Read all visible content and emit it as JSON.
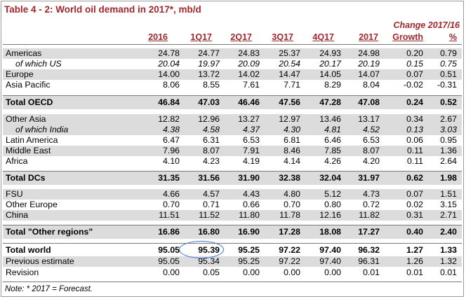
{
  "title": "Table 4 - 2: World oil demand in 2017*, mb/d",
  "change_header": "Change 2017/16",
  "columns": [
    "2016",
    "1Q17",
    "2Q17",
    "3Q17",
    "4Q17",
    "2017",
    "Growth",
    "%"
  ],
  "rows": [
    {
      "label": "Americas",
      "values": [
        "24.78",
        "24.77",
        "24.83",
        "25.37",
        "24.93",
        "24.98",
        "0.20",
        "0.79"
      ]
    },
    {
      "label": "of which US",
      "values": [
        "20.04",
        "19.97",
        "20.09",
        "20.54",
        "20.17",
        "20.19",
        "0.15",
        "0.75"
      ]
    },
    {
      "label": "Europe",
      "values": [
        "14.00",
        "13.72",
        "14.02",
        "14.47",
        "14.05",
        "14.07",
        "0.07",
        "0.51"
      ]
    },
    {
      "label": "Asia Pacific",
      "values": [
        "8.06",
        "8.55",
        "7.61",
        "7.71",
        "8.29",
        "8.04",
        "-0.02",
        "-0.31"
      ]
    },
    {
      "label": "Total OECD",
      "values": [
        "46.84",
        "47.03",
        "46.46",
        "47.56",
        "47.28",
        "47.08",
        "0.24",
        "0.52"
      ]
    },
    {
      "label": "Other Asia",
      "values": [
        "12.82",
        "12.96",
        "13.27",
        "12.97",
        "13.46",
        "13.17",
        "0.34",
        "2.67"
      ]
    },
    {
      "label": "of which India",
      "values": [
        "4.38",
        "4.58",
        "4.37",
        "4.30",
        "4.81",
        "4.52",
        "0.13",
        "3.03"
      ]
    },
    {
      "label": "Latin America",
      "values": [
        "6.47",
        "6.31",
        "6.53",
        "6.81",
        "6.46",
        "6.53",
        "0.06",
        "0.95"
      ]
    },
    {
      "label": "Middle East",
      "values": [
        "7.96",
        "8.07",
        "7.91",
        "8.46",
        "7.85",
        "8.07",
        "0.11",
        "1.36"
      ]
    },
    {
      "label": "Africa",
      "values": [
        "4.10",
        "4.23",
        "4.19",
        "4.14",
        "4.26",
        "4.20",
        "0.11",
        "2.64"
      ]
    },
    {
      "label": "Total DCs",
      "values": [
        "31.35",
        "31.56",
        "31.90",
        "32.38",
        "32.04",
        "31.97",
        "0.62",
        "1.98"
      ]
    },
    {
      "label": "FSU",
      "values": [
        "4.66",
        "4.57",
        "4.43",
        "4.80",
        "5.12",
        "4.73",
        "0.07",
        "1.51"
      ]
    },
    {
      "label": "Other Europe",
      "values": [
        "0.70",
        "0.71",
        "0.66",
        "0.70",
        "0.80",
        "0.72",
        "0.02",
        "3.15"
      ]
    },
    {
      "label": "China",
      "values": [
        "11.51",
        "11.52",
        "11.80",
        "11.78",
        "12.16",
        "11.82",
        "0.31",
        "2.71"
      ]
    },
    {
      "label": "Total \"Other regions\"",
      "values": [
        "16.86",
        "16.80",
        "16.90",
        "17.28",
        "18.08",
        "17.27",
        "0.40",
        "2.40"
      ]
    },
    {
      "label": "Total world",
      "values": [
        "95.05",
        "95.39",
        "95.25",
        "97.22",
        "97.40",
        "96.32",
        "1.27",
        "1.33"
      ]
    },
    {
      "label": "Previous estimate",
      "values": [
        "95.05",
        "95.34",
        "95.25",
        "97.22",
        "97.40",
        "96.31",
        "1.26",
        "1.32"
      ]
    },
    {
      "label": "Revision",
      "values": [
        "0.00",
        "0.05",
        "0.00",
        "0.00",
        "0.00",
        "0.01",
        "0.01",
        "0.01"
      ]
    }
  ],
  "note": "Note: * 2017 = Forecast.",
  "colors": {
    "header_red": "#a0282d",
    "shade": "#dcdcdc",
    "circle_blue": "#3a6fd8"
  }
}
